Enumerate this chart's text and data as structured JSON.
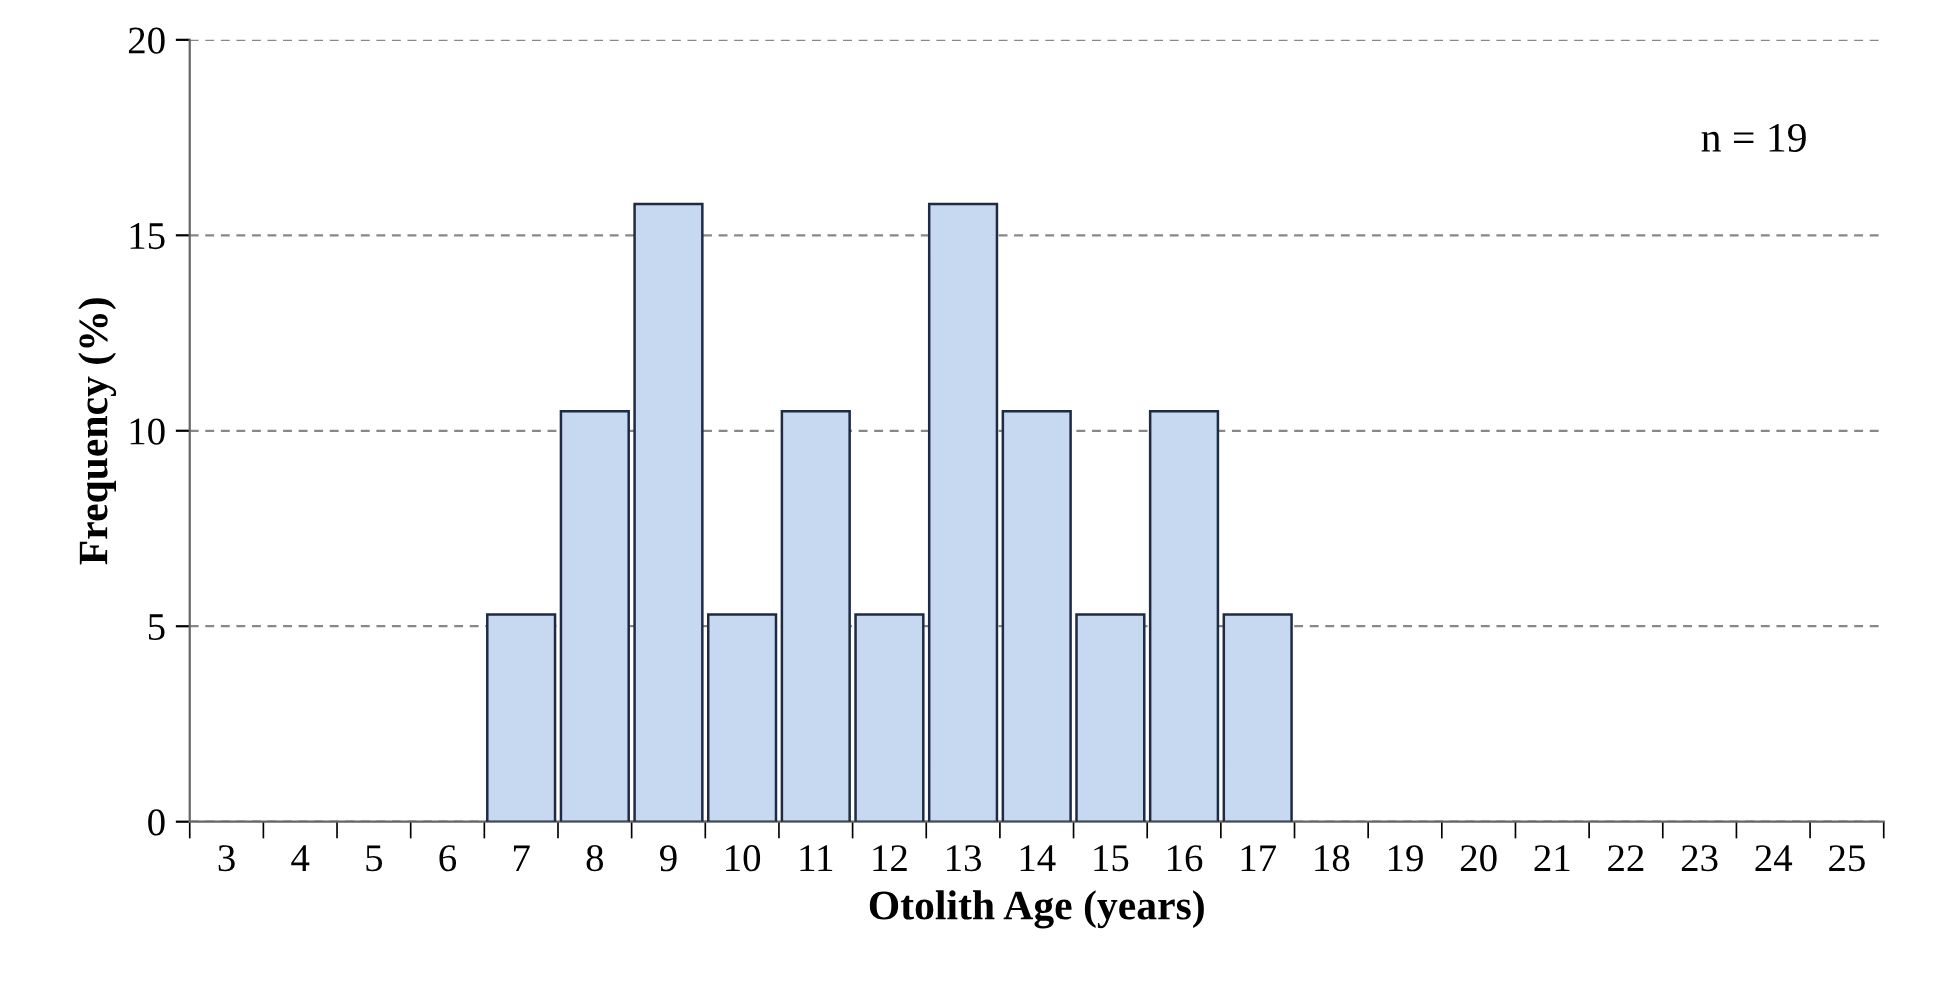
{
  "chart_data": {
    "type": "bar",
    "categories": [
      "3",
      "4",
      "5",
      "6",
      "7",
      "8",
      "9",
      "10",
      "11",
      "12",
      "13",
      "14",
      "15",
      "16",
      "17",
      "18",
      "19",
      "20",
      "21",
      "22",
      "23",
      "24",
      "25"
    ],
    "values": [
      0,
      0,
      0,
      0,
      5.3,
      10.5,
      15.8,
      5.3,
      10.5,
      5.3,
      15.8,
      10.5,
      5.3,
      10.5,
      5.3,
      0,
      0,
      0,
      0,
      0,
      0,
      0,
      0
    ],
    "color": "#c6d9f1",
    "xlabel": "Otolith Age (years)",
    "ylabel": "Frequency (%)",
    "ylim": [
      0,
      20
    ],
    "yticks": [
      0,
      5,
      10,
      15,
      20
    ],
    "grid": "y",
    "legend": false,
    "annotations": [
      "n = 19"
    ]
  }
}
